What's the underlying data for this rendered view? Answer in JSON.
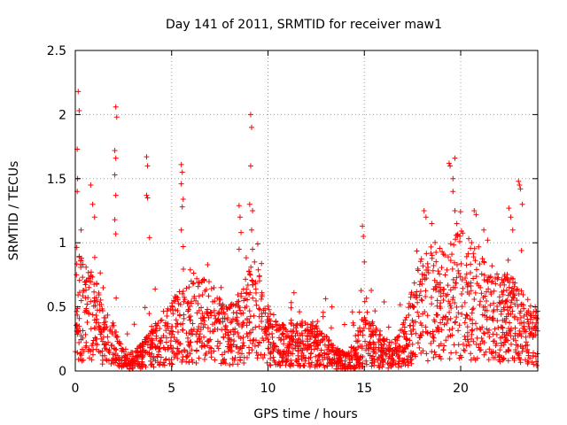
{
  "chart_data": {
    "type": "scatter",
    "title": "Day 141 of 2011, SRMTID for receiver maw1",
    "xlabel": "GPS time / hours",
    "ylabel": "SRMTID / TECUs",
    "xlim": [
      0,
      24
    ],
    "ylim": [
      0,
      2.5
    ],
    "xticks": [
      0,
      5,
      10,
      15,
      20
    ],
    "xtick_labels": [
      "0",
      "5",
      "10",
      "15",
      "20"
    ],
    "yticks": [
      0,
      0.5,
      1,
      1.5,
      2,
      2.5
    ],
    "ytick_labels": [
      "0",
      "0.5",
      "1",
      "1.5",
      "2",
      "2.5"
    ],
    "grid": true,
    "marker": "+",
    "color": "#ff0000",
    "series": [
      {
        "name": "maw1",
        "profile": [
          [
            0.0,
            0.55
          ],
          [
            0.5,
            0.45
          ],
          [
            1.0,
            0.4
          ],
          [
            1.5,
            0.25
          ],
          [
            2.0,
            0.2
          ],
          [
            2.5,
            0.1
          ],
          [
            3.0,
            0.08
          ],
          [
            3.5,
            0.12
          ],
          [
            4.0,
            0.18
          ],
          [
            4.5,
            0.25
          ],
          [
            5.0,
            0.3
          ],
          [
            5.5,
            0.35
          ],
          [
            6.0,
            0.38
          ],
          [
            6.5,
            0.4
          ],
          [
            7.0,
            0.38
          ],
          [
            7.5,
            0.32
          ],
          [
            8.0,
            0.28
          ],
          [
            8.5,
            0.3
          ],
          [
            9.0,
            0.45
          ],
          [
            9.5,
            0.4
          ],
          [
            10.0,
            0.28
          ],
          [
            10.5,
            0.22
          ],
          [
            11.0,
            0.18
          ],
          [
            11.5,
            0.2
          ],
          [
            12.0,
            0.22
          ],
          [
            12.5,
            0.2
          ],
          [
            13.0,
            0.15
          ],
          [
            13.5,
            0.1
          ],
          [
            14.0,
            0.08
          ],
          [
            14.5,
            0.12
          ],
          [
            15.0,
            0.25
          ],
          [
            15.5,
            0.2
          ],
          [
            16.0,
            0.15
          ],
          [
            16.5,
            0.12
          ],
          [
            17.0,
            0.2
          ],
          [
            17.5,
            0.35
          ],
          [
            18.0,
            0.5
          ],
          [
            18.5,
            0.55
          ],
          [
            19.0,
            0.5
          ],
          [
            19.5,
            0.55
          ],
          [
            20.0,
            0.6
          ],
          [
            20.5,
            0.55
          ],
          [
            21.0,
            0.5
          ],
          [
            21.5,
            0.45
          ],
          [
            22.0,
            0.4
          ],
          [
            22.5,
            0.42
          ],
          [
            23.0,
            0.35
          ],
          [
            23.5,
            0.3
          ],
          [
            24.0,
            0.28
          ]
        ],
        "spikes": [
          [
            0.15,
            2.18
          ],
          [
            0.2,
            2.03
          ],
          [
            0.1,
            1.73
          ],
          [
            0.12,
            1.5
          ],
          [
            0.1,
            1.4
          ],
          [
            0.3,
            1.1
          ],
          [
            0.8,
            1.45
          ],
          [
            0.9,
            1.3
          ],
          [
            1.0,
            1.2
          ],
          [
            2.1,
            2.06
          ],
          [
            2.15,
            1.98
          ],
          [
            2.05,
            1.72
          ],
          [
            2.1,
            1.66
          ],
          [
            2.05,
            1.53
          ],
          [
            2.1,
            1.37
          ],
          [
            2.05,
            1.18
          ],
          [
            2.1,
            1.07
          ],
          [
            3.7,
            1.67
          ],
          [
            3.75,
            1.6
          ],
          [
            3.7,
            1.37
          ],
          [
            3.75,
            1.35
          ],
          [
            3.85,
            1.04
          ],
          [
            5.5,
            1.61
          ],
          [
            5.55,
            1.55
          ],
          [
            5.5,
            1.46
          ],
          [
            5.6,
            1.34
          ],
          [
            5.55,
            1.28
          ],
          [
            5.5,
            1.1
          ],
          [
            5.6,
            0.97
          ],
          [
            8.5,
            1.29
          ],
          [
            8.55,
            1.2
          ],
          [
            8.6,
            1.08
          ],
          [
            8.5,
            0.95
          ],
          [
            9.1,
            2.0
          ],
          [
            9.15,
            1.9
          ],
          [
            9.1,
            1.6
          ],
          [
            9.05,
            1.3
          ],
          [
            9.2,
            1.25
          ],
          [
            9.15,
            1.1
          ],
          [
            9.2,
            0.95
          ],
          [
            9.3,
            0.85
          ],
          [
            14.9,
            1.13
          ],
          [
            14.95,
            1.05
          ],
          [
            15.0,
            0.85
          ],
          [
            18.1,
            1.25
          ],
          [
            18.2,
            1.2
          ],
          [
            18.5,
            1.15
          ],
          [
            19.4,
            1.62
          ],
          [
            19.45,
            1.6
          ],
          [
            19.7,
            1.66
          ],
          [
            19.6,
            1.5
          ],
          [
            19.6,
            1.4
          ],
          [
            19.7,
            1.25
          ],
          [
            19.8,
            1.15
          ],
          [
            20.7,
            1.25
          ],
          [
            20.8,
            1.22
          ],
          [
            21.2,
            1.1
          ],
          [
            21.4,
            1.02
          ],
          [
            22.5,
            1.27
          ],
          [
            22.6,
            1.2
          ],
          [
            22.7,
            1.1
          ],
          [
            23.0,
            1.48
          ],
          [
            23.05,
            1.45
          ],
          [
            23.1,
            1.42
          ],
          [
            23.2,
            1.3
          ]
        ]
      }
    ]
  }
}
